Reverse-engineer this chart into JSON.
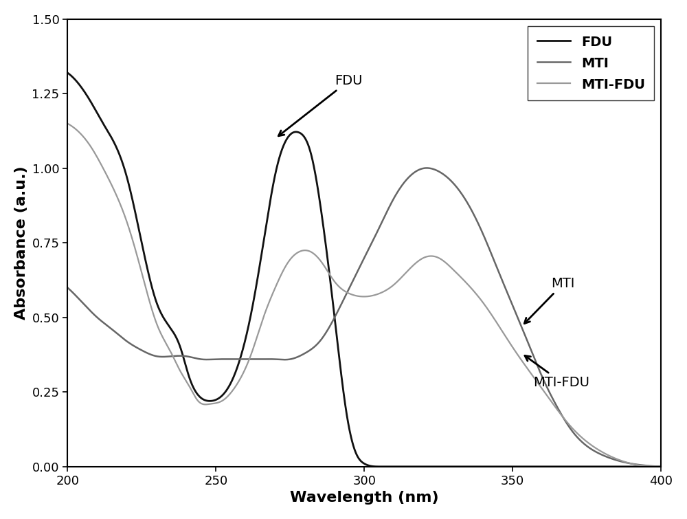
{
  "title": "",
  "xlabel": "Wavelength (nm)",
  "ylabel": "Absorbance (a.u.)",
  "xlim": [
    200,
    400
  ],
  "ylim": [
    0.0,
    1.5
  ],
  "yticks": [
    0.0,
    0.25,
    0.5,
    0.75,
    1.0,
    1.25,
    1.5
  ],
  "xticks": [
    200,
    250,
    300,
    350,
    400
  ],
  "FDU_color": "#111111",
  "MTI_color": "#666666",
  "MTIFDU_color": "#999999",
  "FDU_lw": 2.0,
  "MTI_lw": 1.8,
  "MTIFDU_lw": 1.6,
  "FDU_knots_x": [
    200,
    204,
    208,
    212,
    216,
    220,
    225,
    230,
    235,
    238,
    241,
    244,
    248,
    255,
    262,
    266,
    270,
    274,
    278,
    282,
    286,
    290,
    294,
    297,
    300,
    305,
    310,
    320,
    340,
    360,
    380,
    400
  ],
  "FDU_knots_y": [
    1.32,
    1.28,
    1.22,
    1.15,
    1.08,
    0.97,
    0.75,
    0.55,
    0.46,
    0.4,
    0.3,
    0.24,
    0.22,
    0.28,
    0.52,
    0.75,
    0.98,
    1.1,
    1.12,
    1.05,
    0.82,
    0.5,
    0.18,
    0.05,
    0.01,
    0.0,
    0.0,
    0.0,
    0.0,
    0.0,
    0.0,
    0.0
  ],
  "MTI_knots_x": [
    200,
    205,
    210,
    215,
    220,
    225,
    230,
    235,
    240,
    245,
    250,
    255,
    260,
    265,
    270,
    275,
    280,
    285,
    290,
    295,
    300,
    305,
    310,
    315,
    320,
    325,
    330,
    335,
    340,
    345,
    350,
    355,
    360,
    365,
    370,
    380,
    390,
    400
  ],
  "MTI_knots_y": [
    0.6,
    0.55,
    0.5,
    0.46,
    0.42,
    0.39,
    0.37,
    0.37,
    0.37,
    0.36,
    0.36,
    0.36,
    0.36,
    0.36,
    0.36,
    0.36,
    0.38,
    0.42,
    0.5,
    0.6,
    0.7,
    0.8,
    0.9,
    0.97,
    1.0,
    0.99,
    0.95,
    0.88,
    0.78,
    0.66,
    0.54,
    0.42,
    0.3,
    0.2,
    0.12,
    0.04,
    0.01,
    0.0
  ],
  "MTIFDU_knots_x": [
    200,
    204,
    208,
    212,
    216,
    220,
    225,
    230,
    235,
    238,
    241,
    244,
    248,
    252,
    256,
    262,
    266,
    270,
    274,
    278,
    282,
    286,
    290,
    295,
    300,
    305,
    310,
    315,
    320,
    325,
    330,
    340,
    350,
    360,
    370,
    380,
    390,
    400
  ],
  "MTIFDU_knots_y": [
    1.15,
    1.12,
    1.07,
    1.0,
    0.92,
    0.82,
    0.65,
    0.48,
    0.38,
    0.32,
    0.27,
    0.22,
    0.21,
    0.22,
    0.26,
    0.38,
    0.5,
    0.6,
    0.68,
    0.72,
    0.72,
    0.68,
    0.62,
    0.58,
    0.57,
    0.58,
    0.61,
    0.66,
    0.7,
    0.7,
    0.66,
    0.55,
    0.4,
    0.26,
    0.13,
    0.05,
    0.01,
    0.0
  ],
  "bg_color": "#f0f0f0"
}
